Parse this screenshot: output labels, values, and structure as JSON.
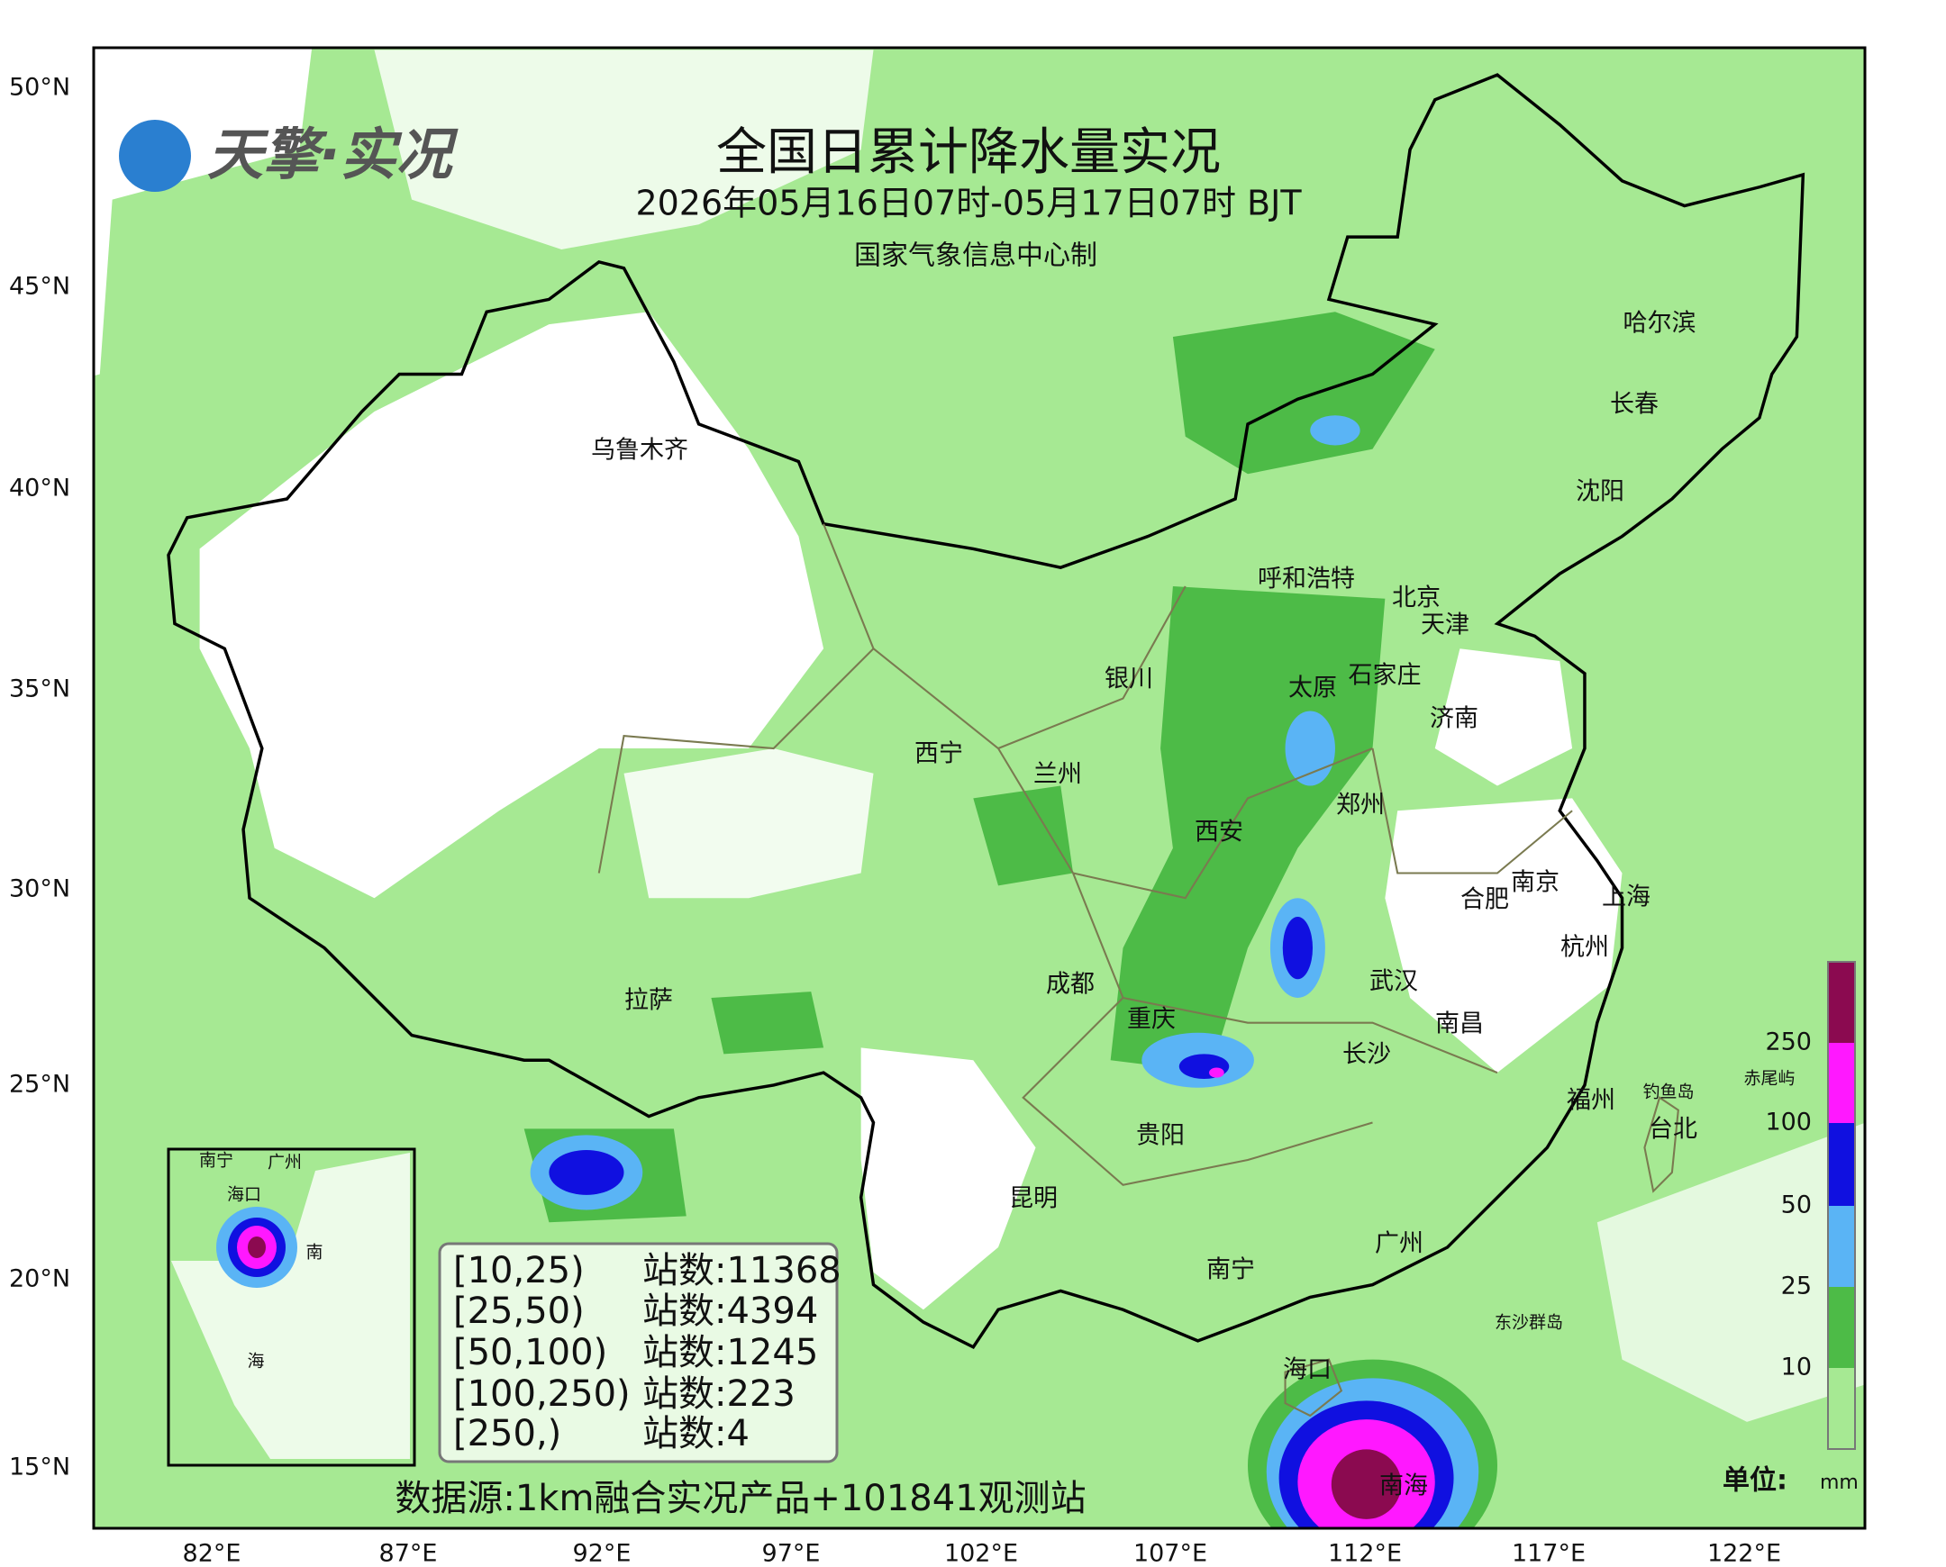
{
  "logo": "天擎·实况",
  "header": {
    "title": "全国日累计降水量实况",
    "subtitle": "2026年05月16日07时-05月17日07时 BJT",
    "producer": "国家气象信息中心制"
  },
  "axes": {
    "lat_labels": [
      "50°N",
      "45°N",
      "40°N",
      "35°N",
      "30°N",
      "25°N",
      "20°N",
      "15°N"
    ],
    "lon_labels": [
      "82°E",
      "87°E",
      "92°E",
      "97°E",
      "102°E",
      "107°E",
      "112°E",
      "117°E",
      "122°E"
    ]
  },
  "cities": [
    "乌鲁木齐",
    "哈尔滨",
    "长春",
    "沈阳",
    "呼和浩特",
    "北京",
    "天津",
    "石家庄",
    "太原",
    "银川",
    "济南",
    "西宁",
    "兰州",
    "郑州",
    "西安",
    "南京",
    "合肥",
    "上海",
    "杭州",
    "成都",
    "武汉",
    "南昌",
    "拉萨",
    "重庆",
    "长沙",
    "福州",
    "钓鱼岛",
    "赤尾屿",
    "台北",
    "贵阳",
    "昆明",
    "广州",
    "南宁",
    "东沙群岛",
    "海口",
    "南海"
  ],
  "inset": {
    "labels": [
      "南宁",
      "广州",
      "海口",
      "南",
      "海"
    ]
  },
  "legend": {
    "rows": [
      [
        "[10,25)",
        "站数:11368"
      ],
      [
        "[25,50)",
        "站数:4394"
      ],
      [
        "[50,100)",
        "站数:1245"
      ],
      [
        "[100,250)",
        "站数:223"
      ],
      [
        "[250,)",
        "站数:4"
      ]
    ]
  },
  "colorbar": {
    "labels": [
      "250",
      "100",
      "50",
      "25",
      "10"
    ],
    "unit": "单位:",
    "unit_symbol": "mm"
  },
  "footer": "数据源:1km融合实况产品+101841观测站"
}
